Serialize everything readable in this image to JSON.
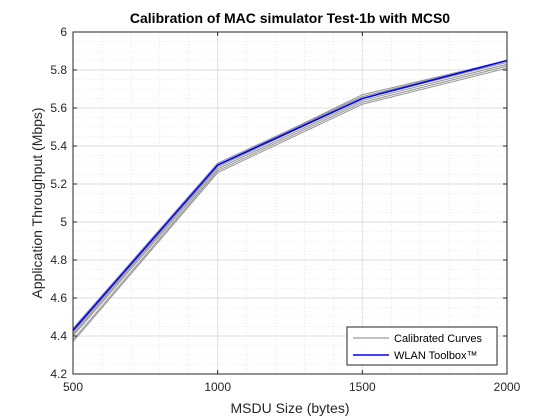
{
  "chart_data": {
    "type": "line",
    "title": "Calibration of MAC simulator Test-1b with MCS0",
    "xlabel": "MSDU Size (bytes)",
    "ylabel": "Application Throughput (Mbps)",
    "x": [
      500,
      1000,
      1500,
      2000
    ],
    "xlim": [
      500,
      2000
    ],
    "ylim": [
      4.2,
      6.0
    ],
    "xticks": [
      500,
      1000,
      1500,
      2000
    ],
    "yticks": [
      4.2,
      4.4,
      4.6,
      4.8,
      5.0,
      5.2,
      5.4,
      5.6,
      5.8,
      6.0
    ],
    "xtick_labels": [
      "500",
      "1000",
      "1500",
      "2000"
    ],
    "ytick_labels": [
      "4.2",
      "4.4",
      "4.6",
      "4.8",
      "5",
      "5.2",
      "5.4",
      "5.6",
      "5.8",
      "6"
    ],
    "grid": true,
    "minor_grid": true,
    "legend_position": "bottom-right",
    "series": [
      {
        "name": "Calibrated Curves",
        "color": "#9a9a9a",
        "values": [
          4.38,
          5.27,
          5.63,
          5.82
        ]
      },
      {
        "name": "",
        "color": "#9a9a9a",
        "values": [
          4.4,
          5.28,
          5.64,
          5.83
        ]
      },
      {
        "name": "",
        "color": "#9a9a9a",
        "values": [
          4.41,
          5.29,
          5.65,
          5.84
        ]
      },
      {
        "name": "",
        "color": "#9a9a9a",
        "values": [
          4.42,
          5.3,
          5.66,
          5.84
        ]
      },
      {
        "name": "",
        "color": "#9a9a9a",
        "values": [
          4.43,
          5.3,
          5.67,
          5.85
        ]
      },
      {
        "name": "",
        "color": "#9a9a9a",
        "values": [
          4.37,
          5.26,
          5.62,
          5.81
        ]
      },
      {
        "name": "",
        "color": "#9a9a9a",
        "values": [
          4.44,
          5.31,
          5.66,
          5.85
        ]
      },
      {
        "name": "WLAN Toolbox™",
        "color": "#0000ff",
        "values": [
          4.43,
          5.3,
          5.65,
          5.85
        ]
      }
    ],
    "legend": [
      {
        "label": "Calibrated Curves",
        "color": "#9a9a9a"
      },
      {
        "label": "WLAN Toolbox™",
        "color": "#0000ff"
      }
    ]
  }
}
